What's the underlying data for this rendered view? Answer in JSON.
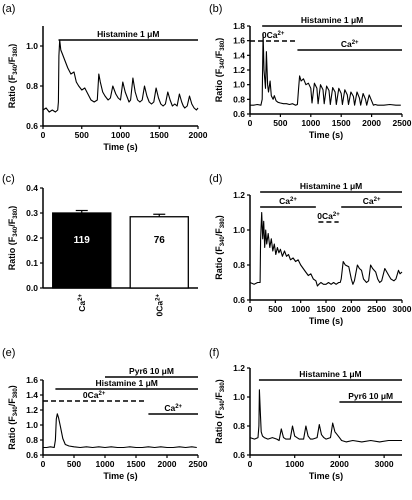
{
  "chart_data": [
    {
      "panel_label": "(a)",
      "type": "line",
      "xlabel": "Time (s)",
      "ylabel": "Ratio (F340/F380)",
      "xlim": [
        0,
        2000
      ],
      "ylim": [
        0.6,
        1.1
      ],
      "xticks": [
        0,
        500,
        1000,
        1500,
        2000
      ],
      "yticks": [
        0.6,
        0.8,
        1.0
      ],
      "annotations": [
        {
          "text": "Histamine 1 μM",
          "style": "solid",
          "x_range": [
            200,
            2000
          ]
        }
      ],
      "series": [
        {
          "x": [
            0,
            40,
            80,
            120,
            160,
            190,
            199,
            205,
            215,
            230,
            250,
            280,
            320,
            360,
            400,
            430,
            460,
            500,
            540,
            580,
            620,
            660,
            700,
            720,
            740,
            770,
            800,
            840,
            870,
            900,
            940,
            970,
            1000,
            1030,
            1060,
            1090,
            1110,
            1130,
            1160,
            1190,
            1220,
            1250,
            1280,
            1310,
            1340,
            1370,
            1400,
            1430,
            1460,
            1490,
            1520,
            1550,
            1580,
            1610,
            1640,
            1670,
            1700,
            1730,
            1760,
            1790,
            1810,
            1830,
            1860,
            1890,
            1920,
            1950,
            1980,
            2000
          ],
          "values": [
            0.68,
            0.69,
            0.67,
            0.68,
            0.67,
            0.68,
            0.72,
            0.95,
            1.03,
            0.98,
            0.96,
            0.93,
            0.89,
            0.86,
            0.87,
            0.82,
            0.8,
            0.78,
            0.79,
            0.76,
            0.73,
            0.72,
            0.73,
            0.86,
            0.82,
            0.77,
            0.75,
            0.73,
            0.74,
            0.8,
            0.76,
            0.74,
            0.73,
            0.82,
            0.77,
            0.74,
            0.72,
            0.73,
            0.84,
            0.77,
            0.73,
            0.72,
            0.73,
            0.8,
            0.75,
            0.72,
            0.71,
            0.72,
            0.79,
            0.74,
            0.71,
            0.7,
            0.71,
            0.77,
            0.73,
            0.7,
            0.71,
            0.7,
            0.76,
            0.72,
            0.7,
            0.69,
            0.7,
            0.75,
            0.71,
            0.69,
            0.68,
            0.69
          ]
        }
      ]
    },
    {
      "panel_label": "(b)",
      "type": "line",
      "xlabel": "Time (s)",
      "ylabel": "Ratio (F340/F380)",
      "xlim": [
        0,
        2500
      ],
      "ylim": [
        0.6,
        1.8
      ],
      "xticks": [
        0,
        500,
        1000,
        1500,
        2000,
        2500
      ],
      "yticks": [
        0.6,
        0.8,
        1.0,
        1.2,
        1.4,
        1.6,
        1.8
      ],
      "annotations": [
        {
          "text": "Histamine 1 μM",
          "style": "solid",
          "x_range": [
            200,
            2500
          ]
        },
        {
          "text": "0Ca2+",
          "style": "dashed",
          "x_range": [
            0,
            760
          ]
        },
        {
          "text": "Ca2+",
          "style": "solid",
          "x_range": [
            780,
            2500
          ]
        }
      ],
      "series": [
        {
          "x": [
            0,
            60,
            120,
            180,
            200,
            215,
            230,
            255,
            270,
            290,
            305,
            330,
            350,
            380,
            400,
            430,
            460,
            500,
            550,
            600,
            650,
            700,
            750,
            780,
            800,
            815,
            840,
            880,
            920,
            960,
            1000,
            1020,
            1060,
            1100,
            1120,
            1160,
            1200,
            1220,
            1260,
            1300,
            1320,
            1360,
            1400,
            1420,
            1460,
            1500,
            1520,
            1560,
            1600,
            1620,
            1660,
            1700,
            1720,
            1760,
            1800,
            1820,
            1860,
            1900,
            1920,
            1960,
            2000,
            2030,
            2060,
            2100,
            2200,
            2300,
            2400,
            2480
          ],
          "values": [
            0.72,
            0.72,
            0.73,
            0.72,
            0.8,
            1.7,
            1.2,
            0.95,
            1.45,
            1.0,
            0.9,
            1.05,
            0.85,
            0.8,
            0.85,
            0.78,
            0.76,
            0.75,
            0.74,
            0.74,
            0.73,
            0.74,
            0.72,
            0.73,
            0.95,
            1.12,
            1.05,
            1.08,
            1.0,
            1.02,
            0.95,
            0.75,
            1.02,
            0.95,
            0.74,
            1.0,
            0.93,
            0.74,
            0.98,
            0.92,
            0.73,
            0.96,
            0.9,
            0.73,
            0.95,
            0.88,
            0.73,
            0.93,
            0.86,
            0.73,
            0.9,
            0.84,
            0.72,
            0.9,
            0.82,
            0.72,
            0.88,
            0.8,
            0.72,
            0.86,
            0.78,
            0.72,
            0.73,
            0.72,
            0.72,
            0.73,
            0.72,
            0.72
          ]
        }
      ]
    },
    {
      "panel_label": "(c)",
      "type": "bar",
      "ylabel": "Ratio (F340/F380)",
      "ylim": [
        0,
        0.4
      ],
      "yticks": [
        0.0,
        0.1,
        0.2,
        0.3,
        0.4
      ],
      "categories": [
        "Ca2+",
        "0Ca2+"
      ],
      "values": [
        0.3,
        0.285
      ],
      "errors": [
        0.01,
        0.01
      ],
      "bar_labels": [
        "119",
        "76"
      ],
      "colors": [
        "#000000",
        "#ffffff"
      ]
    },
    {
      "panel_label": "(d)",
      "type": "line",
      "xlabel": "Time (s)",
      "ylabel": "Ratio (F340/F380)",
      "xlim": [
        0,
        3000
      ],
      "ylim": [
        0.6,
        1.2
      ],
      "xticks": [
        0,
        500,
        1000,
        1500,
        2000,
        2500,
        3000
      ],
      "yticks": [
        0.6,
        0.8,
        1.0,
        1.2
      ],
      "annotations": [
        {
          "text": "Histamine 1 μM",
          "style": "solid",
          "x_range": [
            200,
            3000
          ]
        },
        {
          "text": "Ca2+",
          "style": "solid",
          "x_range": [
            200,
            1300
          ]
        },
        {
          "text": "0Ca2+",
          "style": "dashed",
          "x_range": [
            1350,
            1750
          ]
        },
        {
          "text": "Ca2+",
          "style": "solid",
          "x_range": [
            1800,
            3000
          ]
        }
      ],
      "series": [
        {
          "x": [
            0,
            80,
            150,
            199,
            210,
            230,
            250,
            270,
            290,
            310,
            330,
            360,
            390,
            420,
            450,
            480,
            510,
            540,
            570,
            600,
            640,
            680,
            720,
            760,
            800,
            850,
            900,
            950,
            1000,
            1050,
            1100,
            1150,
            1200,
            1250,
            1300,
            1330,
            1360,
            1400,
            1450,
            1500,
            1550,
            1600,
            1650,
            1700,
            1750,
            1780,
            1800,
            1840,
            1880,
            1950,
            2000,
            2030,
            2060,
            2120,
            2160,
            2200,
            2240,
            2300,
            2340,
            2380,
            2420,
            2480,
            2520,
            2560,
            2600,
            2660,
            2700,
            2740,
            2780,
            2840,
            2880,
            2930,
            2960,
            3000
          ],
          "values": [
            0.7,
            0.69,
            0.7,
            0.7,
            0.95,
            1.1,
            0.95,
            1.05,
            0.9,
            1.0,
            0.92,
            0.98,
            0.9,
            0.95,
            0.88,
            0.92,
            0.86,
            0.9,
            0.87,
            0.89,
            0.85,
            0.88,
            0.85,
            0.86,
            0.83,
            0.84,
            0.82,
            0.83,
            0.8,
            0.78,
            0.76,
            0.74,
            0.75,
            0.72,
            0.71,
            0.68,
            0.69,
            0.7,
            0.69,
            0.69,
            0.7,
            0.69,
            0.7,
            0.69,
            0.7,
            0.7,
            0.72,
            0.82,
            0.8,
            0.79,
            0.72,
            0.69,
            0.71,
            0.8,
            0.78,
            0.77,
            0.72,
            0.7,
            0.71,
            0.8,
            0.78,
            0.76,
            0.72,
            0.7,
            0.71,
            0.78,
            0.76,
            0.74,
            0.72,
            0.71,
            0.72,
            0.77,
            0.75,
            0.76
          ]
        }
      ]
    },
    {
      "panel_label": "(e)",
      "type": "line",
      "xlabel": "Time (s)",
      "ylabel": "Ratio (F340/F380)",
      "xlim": [
        0,
        2500
      ],
      "ylim": [
        0.6,
        1.6
      ],
      "xticks": [
        0,
        500,
        1000,
        1500,
        2000,
        2500
      ],
      "yticks": [
        0.6,
        0.8,
        1.0,
        1.2,
        1.4,
        1.6
      ],
      "annotations": [
        {
          "text": "Pyr6 10 μM",
          "style": "solid",
          "x_range": [
            1000,
            2500
          ]
        },
        {
          "text": "Histamine 1 μM",
          "style": "solid",
          "x_range": [
            200,
            2500
          ]
        },
        {
          "text": "0Ca2+",
          "style": "dashed",
          "x_range": [
            0,
            1650
          ]
        },
        {
          "text": "Ca2+",
          "style": "solid",
          "x_range": [
            1700,
            2500
          ]
        }
      ],
      "series": [
        {
          "x": [
            0,
            60,
            120,
            180,
            200,
            215,
            230,
            250,
            280,
            320,
            360,
            420,
            500,
            600,
            700,
            800,
            900,
            1000,
            1100,
            1200,
            1300,
            1400,
            1500,
            1600,
            1700,
            1800,
            1900,
            2000,
            2100,
            2200,
            2300,
            2400,
            2480
          ],
          "values": [
            0.7,
            0.7,
            0.71,
            0.7,
            0.8,
            1.08,
            1.15,
            1.1,
            0.98,
            0.82,
            0.74,
            0.72,
            0.71,
            0.7,
            0.71,
            0.7,
            0.71,
            0.7,
            0.71,
            0.7,
            0.7,
            0.71,
            0.7,
            0.7,
            0.71,
            0.7,
            0.71,
            0.7,
            0.7,
            0.71,
            0.7,
            0.71,
            0.7
          ]
        }
      ]
    },
    {
      "panel_label": "(f)",
      "type": "line",
      "xlabel": "Time (s)",
      "ylabel": "Ratio (F340/F380)",
      "xlim": [
        0,
        3400
      ],
      "ylim": [
        0.6,
        1.2
      ],
      "xticks": [
        0,
        1000,
        2000,
        3000
      ],
      "yticks": [
        0.6,
        0.8,
        1.0,
        1.2
      ],
      "annotations": [
        {
          "text": "Histamine 1 μM",
          "style": "solid",
          "x_range": [
            200,
            3400
          ]
        },
        {
          "text": "Pyr6 10 μM",
          "style": "solid",
          "x_range": [
            2000,
            3400
          ]
        }
      ],
      "series": [
        {
          "x": [
            0,
            100,
            180,
            199,
            210,
            230,
            250,
            280,
            320,
            400,
            500,
            600,
            650,
            700,
            750,
            800,
            900,
            950,
            1000,
            1050,
            1100,
            1200,
            1250,
            1300,
            1350,
            1400,
            1500,
            1550,
            1600,
            1650,
            1700,
            1800,
            1850,
            1900,
            1950,
            2000,
            2050,
            2150,
            2300,
            2500,
            2700,
            2900,
            3100,
            3300,
            3400
          ],
          "values": [
            0.72,
            0.71,
            0.72,
            0.8,
            1.05,
            0.9,
            0.76,
            0.73,
            0.72,
            0.71,
            0.72,
            0.71,
            0.7,
            0.78,
            0.72,
            0.71,
            0.71,
            0.8,
            0.73,
            0.72,
            0.71,
            0.71,
            0.8,
            0.73,
            0.71,
            0.71,
            0.72,
            0.81,
            0.74,
            0.72,
            0.71,
            0.72,
            0.82,
            0.76,
            0.74,
            0.72,
            0.7,
            0.69,
            0.7,
            0.69,
            0.7,
            0.69,
            0.7,
            0.7,
            0.7
          ]
        }
      ]
    }
  ]
}
